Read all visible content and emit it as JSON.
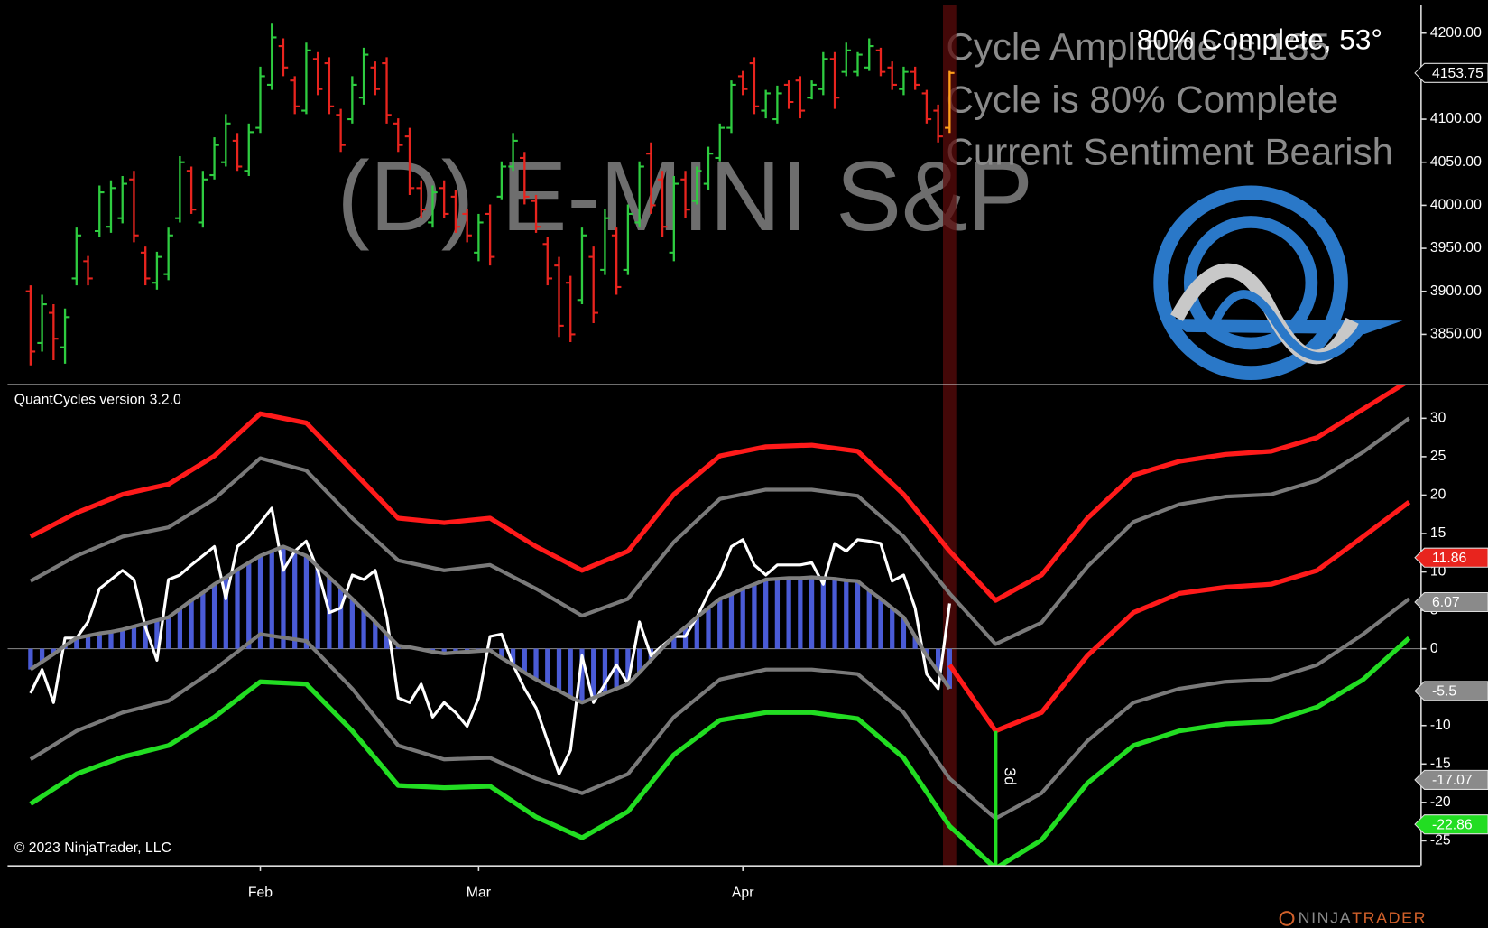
{
  "chart_data": [
    {
      "type": "ohlc",
      "title": "(D) E-MINI S&P",
      "annotations": [
        "Cycle Amplitude is 135",
        "Cycle is 80% Complete",
        "Current Sentiment Bearish"
      ],
      "status": "80% Complete, 53°",
      "x": [
        0,
        1,
        2,
        3,
        4,
        5,
        6,
        7,
        8,
        9,
        10,
        11,
        12,
        13,
        14,
        15,
        16,
        17,
        18,
        19,
        20,
        21,
        22,
        23,
        24,
        25,
        26,
        27,
        28,
        29,
        30,
        31,
        32,
        33,
        34,
        35,
        36,
        37,
        38,
        39,
        40,
        41,
        42,
        43,
        44,
        45,
        46,
        47,
        48,
        49,
        50,
        51,
        52,
        53,
        54,
        55,
        56,
        57,
        58,
        59,
        60,
        61,
        62,
        63,
        64,
        65,
        66,
        67,
        68,
        69,
        70,
        71,
        72,
        73,
        74,
        75,
        76,
        77,
        78,
        79,
        80
      ],
      "open": [
        3900,
        3840,
        3875,
        3835,
        3915,
        3935,
        3970,
        3975,
        3985,
        4030,
        3945,
        3910,
        3920,
        3985,
        4040,
        3980,
        4035,
        4050,
        4075,
        4040,
        4090,
        4140,
        4185,
        4145,
        4110,
        4170,
        4165,
        4105,
        4100,
        4125,
        4160,
        4165,
        4095,
        4080,
        4020,
        3980,
        4020,
        4010,
        3990,
        3945,
        3990,
        4010,
        4045,
        4055,
        4005,
        3955,
        3930,
        3910,
        3890,
        3940,
        3925,
        3965,
        3925,
        3980,
        4060,
        4030,
        3945,
        4030,
        4005,
        4025,
        4055,
        4090,
        4150,
        4165,
        4110,
        4100,
        4140,
        4145,
        4125,
        4135,
        4170,
        4155,
        4155,
        4160,
        4180,
        4160,
        4135,
        4155,
        4130,
        4110,
        4090
      ],
      "high": [
        3907,
        3896,
        3885,
        3880,
        3974,
        3941,
        4023,
        4029,
        4034,
        4040,
        3952,
        3946,
        3974,
        4057,
        4045,
        4040,
        4079,
        4106,
        4084,
        4095,
        4161,
        4211,
        4194,
        4150,
        4189,
        4178,
        4172,
        4112,
        4150,
        4183,
        4167,
        4172,
        4101,
        4090,
        4029,
        4023,
        4029,
        4018,
        3996,
        3990,
        4001,
        4051,
        4084,
        4062,
        4012,
        3963,
        3940,
        3918,
        3974,
        3952,
        3996,
        3974,
        4001,
        4051,
        4073,
        4040,
        4034,
        4040,
        4045,
        4068,
        4095,
        4145,
        4156,
        4172,
        4134,
        4139,
        4145,
        4150,
        4145,
        4178,
        4178,
        4189,
        4178,
        4194,
        4183,
        4167,
        4161,
        4161,
        4134,
        4117,
        4156
      ],
      "low": [
        3814,
        3830,
        3820,
        3816,
        3907,
        3907,
        3963,
        3968,
        3979,
        3957,
        3907,
        3902,
        3913,
        3980,
        3990,
        3974,
        4030,
        4045,
        4040,
        4034,
        4084,
        4134,
        4150,
        4106,
        4106,
        4128,
        4106,
        4062,
        4095,
        4117,
        4128,
        4095,
        4062,
        4012,
        3985,
        3974,
        3985,
        3968,
        3957,
        3935,
        3930,
        4007,
        4040,
        4001,
        3968,
        3907,
        3847,
        3841,
        3885,
        3863,
        3919,
        3896,
        3919,
        3974,
        3990,
        3963,
        3935,
        3985,
        4001,
        4018,
        4051,
        4084,
        4128,
        4106,
        4101,
        4095,
        4112,
        4101,
        4123,
        4128,
        4112,
        4150,
        4150,
        4156,
        4150,
        4134,
        4128,
        4134,
        4095,
        4073,
        4084
      ],
      "close": [
        3830,
        3885,
        3845,
        3870,
        3965,
        3915,
        4015,
        4020,
        4025,
        3965,
        3915,
        3940,
        3965,
        4050,
        3995,
        4030,
        4070,
        4095,
        4045,
        4085,
        4150,
        4195,
        4160,
        4115,
        4180,
        4135,
        4115,
        4070,
        4140,
        4175,
        4135,
        4105,
        4070,
        4020,
        3995,
        4015,
        3990,
        3975,
        3965,
        3980,
        3940,
        4045,
        4075,
        4010,
        3975,
        3915,
        3860,
        3850,
        3965,
        3875,
        3985,
        3905,
        3990,
        4045,
        4000,
        3975,
        4025,
        3995,
        4040,
        4060,
        4090,
        4140,
        4135,
        4115,
        4130,
        4130,
        4120,
        4110,
        4140,
        4170,
        4125,
        4180,
        4175,
        4185,
        4155,
        4140,
        4155,
        4140,
        4100,
        4080,
        4153.75
      ],
      "up_color": "#2ecc40",
      "down_color": "#e8241e",
      "current_color": "#ff9f1a",
      "xlim": [
        -2,
        121
      ],
      "ylim": [
        3792,
        4233
      ],
      "yticks": [
        {
          "value": 3850,
          "label": "3850.00"
        },
        {
          "value": 3900,
          "label": "3900.00"
        },
        {
          "value": 3950,
          "label": "3950.00"
        },
        {
          "value": 4000,
          "label": "4000.00"
        },
        {
          "value": 4050,
          "label": "4050.00"
        },
        {
          "value": 4100,
          "label": "4100.00"
        },
        {
          "value": 4200,
          "label": "4200.00"
        }
      ],
      "markers": [
        {
          "value": 4153.75,
          "color": "#000000"
        }
      ]
    },
    {
      "type": "line",
      "label": "QuantCycles version 3.2.0",
      "x": [
        0,
        1,
        2,
        3,
        4,
        5,
        6,
        7,
        8,
        9,
        10,
        11,
        12,
        13,
        14,
        15,
        16,
        17,
        18,
        19,
        20,
        21,
        22,
        23,
        24,
        25,
        26,
        27,
        28,
        29,
        30,
        31,
        32,
        33,
        34,
        35,
        36,
        37,
        38,
        39,
        40,
        41,
        42,
        43,
        44,
        45,
        46,
        47,
        48,
        49,
        50,
        51,
        52,
        53,
        54,
        55,
        56,
        57,
        58,
        59,
        60,
        61,
        62,
        63,
        64,
        65,
        66,
        67,
        68,
        69,
        70,
        71,
        72,
        73,
        74,
        75,
        76,
        77,
        78,
        79,
        80
      ],
      "series": [
        {
          "style": "histogram",
          "color": "#4a5bd6",
          "outline_color": "#7f7f7f",
          "width": 5,
          "values": [
            -2.7,
            -1.7,
            -0.7,
            0.4,
            1.4,
            1.7,
            2.0,
            2.2,
            2.5,
            2.9,
            3.3,
            3.7,
            4.1,
            5.2,
            6.3,
            7.3,
            8.4,
            9.3,
            10.3,
            11.2,
            12.1,
            12.7,
            13.3,
            12.7,
            12.1,
            10.7,
            9.3,
            7.9,
            6.5,
            5.0,
            3.5,
            1.9,
            0.4,
            0.2,
            -0.1,
            -0.4,
            -0.6,
            -0.5,
            -0.4,
            -0.3,
            -0.2,
            -1.2,
            -2.1,
            -3.1,
            -4.0,
            -4.8,
            -5.5,
            -6.3,
            -7.0,
            -6.4,
            -5.8,
            -5.2,
            -4.6,
            -3.1,
            -1.5,
            0.1,
            1.6,
            2.8,
            4.1,
            5.3,
            6.5,
            7.1,
            7.8,
            8.4,
            9.0,
            9.1,
            9.2,
            9.2,
            9.3,
            9.2,
            9.1,
            8.9,
            8.8,
            7.6,
            6.5,
            5.3,
            4.1,
            1.6,
            -0.9,
            -3.0,
            -5.2
          ]
        },
        {
          "style": "line",
          "color": "#ffffff",
          "width": 3,
          "values": [
            -5.8,
            -2.7,
            -7.0,
            1.4,
            1.4,
            3.5,
            7.8,
            9.0,
            10.2,
            9.0,
            2.8,
            -1.5,
            9.0,
            9.6,
            10.9,
            12.1,
            13.3,
            6.5,
            13.3,
            14.6,
            16.4,
            18.3,
            10.2,
            12.7,
            14.0,
            10.2,
            4.7,
            5.3,
            9.6,
            9.0,
            10.2,
            4.1,
            -6.4,
            -7.0,
            -4.6,
            -8.9,
            -7.0,
            -8.3,
            -10.1,
            -6.4,
            1.6,
            1.9,
            -2.1,
            -5.2,
            -7.7,
            -12.0,
            -16.3,
            -13.2,
            -0.9,
            -7.0,
            -4.6,
            -2.1,
            -4.6,
            3.5,
            -0.9,
            0.4,
            1.6,
            1.6,
            4.1,
            7.2,
            9.6,
            13.3,
            14.2,
            10.9,
            9.6,
            10.9,
            10.9,
            10.9,
            11.2,
            8.4,
            13.7,
            12.7,
            14.2,
            14.0,
            13.7,
            8.8,
            9.6,
            5.3,
            -3.3,
            -5.2,
            5.9
          ]
        }
      ],
      "bands": {
        "x": [
          0,
          4,
          8,
          12,
          16,
          20,
          24,
          28,
          32,
          36,
          40,
          44,
          48,
          52,
          56,
          60,
          64,
          68,
          72,
          76,
          80,
          84,
          88,
          92,
          96,
          100,
          104,
          108,
          112,
          116,
          120
        ],
        "series": [
          {
            "color": "#ff1a1a",
            "width": 5,
            "values": [
              14.6,
              17.7,
              20.1,
              21.4,
              25.1,
              30.6,
              29.4,
              23.2,
              17.0,
              16.4,
              17.0,
              13.3,
              10.2,
              12.7,
              20.1,
              25.1,
              26.3,
              26.5,
              25.7,
              20.1,
              12.7,
              6.3,
              9.6,
              17.0,
              22.6,
              24.4,
              25.3,
              25.7,
              27.5,
              31.2,
              34.9
            ]
          },
          {
            "color": "#7a7a7a",
            "width": 4,
            "values": [
              8.8,
              12.1,
              14.6,
              15.8,
              19.5,
              24.8,
              23.2,
              17.0,
              11.5,
              10.2,
              10.9,
              7.8,
              4.3,
              6.5,
              13.9,
              19.5,
              20.7,
              20.7,
              19.9,
              14.6,
              7.2,
              0.6,
              3.4,
              10.7,
              16.5,
              18.8,
              19.8,
              20.1,
              21.9,
              25.6,
              30.0
            ]
          },
          {
            "color": "#7a7a7a",
            "width": 4,
            "values": [
              -14.4,
              -10.7,
              -8.3,
              -6.8,
              -2.7,
              1.9,
              1.0,
              -5.2,
              -12.6,
              -14.4,
              -14.2,
              -16.9,
              -18.8,
              -16.3,
              -8.9,
              -4.0,
              -2.7,
              -2.7,
              -3.3,
              -8.3,
              -16.9,
              -22.1,
              -18.8,
              -12.0,
              -7.0,
              -5.2,
              -4.3,
              -4.0,
              -2.1,
              1.9,
              6.5
            ]
          },
          {
            "color": "#22dd22",
            "width": 5,
            "values": [
              -20.2,
              -16.3,
              -14.1,
              -12.6,
              -8.9,
              -4.3,
              -4.6,
              -10.7,
              -17.8,
              -18.1,
              -17.9,
              -21.9,
              -24.6,
              -21.2,
              -13.8,
              -9.3,
              -8.3,
              -8.3,
              -9.1,
              -14.2,
              -23.1,
              -28.6,
              -24.9,
              -17.5,
              -12.6,
              -10.7,
              -9.8,
              -9.5,
              -7.6,
              -4.0,
              1.4
            ]
          },
          {
            "color": "#ff1a1a",
            "width": 5,
            "values": [
              null,
              null,
              null,
              null,
              null,
              null,
              null,
              null,
              null,
              null,
              null,
              null,
              null,
              null,
              null,
              null,
              null,
              null,
              null,
              null,
              -2.1,
              -10.7,
              -8.3,
              -0.9,
              4.7,
              7.2,
              8.0,
              8.4,
              10.2,
              14.6,
              19.1
            ]
          }
        ]
      },
      "cycle_low": {
        "x": 84,
        "value": -10.7,
        "label": "3d",
        "color": "#22dd22"
      },
      "xlim": [
        -2,
        121
      ],
      "ylim": [
        -28.2,
        34.3
      ],
      "xticks": [
        {
          "value": 20,
          "label": "Feb"
        },
        {
          "value": 39,
          "label": "Mar"
        },
        {
          "value": 62,
          "label": "Apr"
        }
      ],
      "yticks": [
        30,
        25,
        20,
        15,
        10,
        5,
        0,
        -5,
        -10,
        -15,
        -20,
        -25
      ],
      "markers": [
        {
          "value": 11.86,
          "color": "#e8241e"
        },
        {
          "value": 6.07,
          "color": "#8a8a8a"
        },
        {
          "value": -5.5,
          "color": "#8a8a8a"
        },
        {
          "value": -17.07,
          "color": "#8a8a8a"
        },
        {
          "value": -22.86,
          "color": "#22dd22"
        }
      ]
    }
  ],
  "footer": {
    "copyright": "© 2023 NinjaTrader, LLC",
    "brand": [
      "NINJA",
      "TRADER"
    ]
  }
}
